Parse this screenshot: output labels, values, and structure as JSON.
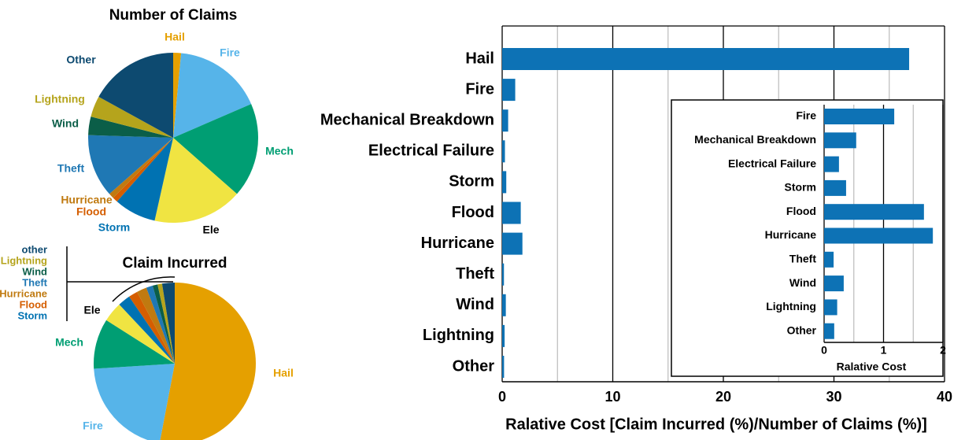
{
  "chart_data": [
    {
      "type": "pie",
      "title": "Number of Claims",
      "categories": [
        "Hail",
        "Fire",
        "Mech",
        "Ele",
        "Storm",
        "Flood",
        "Hurricane",
        "Theft",
        "Wind",
        "Lightning",
        "Other"
      ],
      "values": [
        1.5,
        17,
        18,
        17,
        8,
        1,
        1,
        12,
        3.5,
        4,
        17
      ],
      "colors": [
        "#e5a000",
        "#56b4e9",
        "#009e73",
        "#f0e442",
        "#0072b2",
        "#d55e00",
        "#c07a10",
        "#1f78b4",
        "#0b5e48",
        "#b5a41c",
        "#0d4a70"
      ]
    },
    {
      "type": "pie",
      "title": "Claim Incurred",
      "categories": [
        "Hail",
        "Fire",
        "Mech",
        "Ele",
        "Storm",
        "Flood",
        "Hurricane",
        "Theft",
        "Wind",
        "Lightning",
        "other"
      ],
      "values": [
        53,
        21,
        10,
        4,
        2.5,
        1.8,
        2,
        1.3,
        1,
        0.9,
        2.5
      ],
      "colors": [
        "#e5a000",
        "#56b4e9",
        "#009e73",
        "#f0e442",
        "#0072b2",
        "#d55e00",
        "#c07a10",
        "#1f78b4",
        "#0b5e48",
        "#b5a41c",
        "#0d4a70"
      ]
    },
    {
      "type": "hbar",
      "x_label": "Ralative Cost [Claim Incurred (%)/Number of Claims (%)]",
      "categories": [
        "Hail",
        "Fire",
        "Mechanical Breakdown",
        "Electrical Failure",
        "Storm",
        "Flood",
        "Hurricane",
        "Theft",
        "Wind",
        "Lightning",
        "Other"
      ],
      "values": [
        36.8,
        1.18,
        0.54,
        0.25,
        0.37,
        1.68,
        1.83,
        0.16,
        0.33,
        0.22,
        0.17
      ],
      "color": "#0d72b5",
      "xlim": [
        0,
        40
      ],
      "xticks": [
        0,
        10,
        20,
        30,
        40
      ],
      "minor_grid": [
        5,
        15,
        25,
        35
      ]
    },
    {
      "type": "hbar",
      "x_label": "Ralative Cost",
      "categories": [
        "Fire",
        "Mechanical Breakdown",
        "Electrical Failure",
        "Storm",
        "Flood",
        "Hurricane",
        "Theft",
        "Wind",
        "Lightning",
        "Other"
      ],
      "values": [
        1.18,
        0.54,
        0.25,
        0.37,
        1.68,
        1.83,
        0.16,
        0.33,
        0.22,
        0.17
      ],
      "color": "#0d72b5",
      "xlim": [
        0,
        2
      ],
      "xticks": [
        0,
        1,
        2
      ],
      "minor_grid": [
        0.5,
        1.5
      ]
    }
  ]
}
